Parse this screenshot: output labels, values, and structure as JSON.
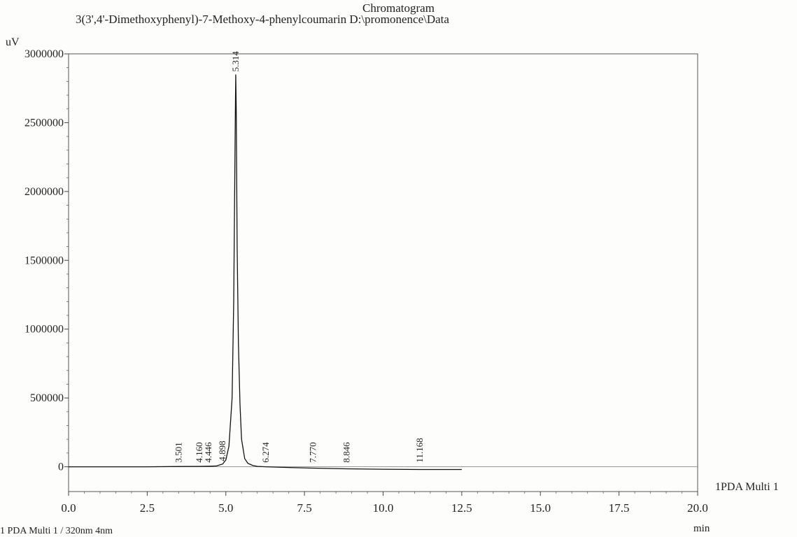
{
  "chart_data": {
    "type": "line",
    "title": "Chromatogram",
    "subtitle": "3(3',4'-Dimethoxyphenyl)-7-Methoxy-4-phenylcoumarin D:\\promonence\\Data",
    "ylabel": "uV",
    "xlabel": "min",
    "xlim": [
      0,
      20
    ],
    "ylim": [
      -180000,
      3000000
    ],
    "x_ticks": [
      "0.0",
      "2.5",
      "5.0",
      "7.5",
      "10.0",
      "12.5",
      "15.0",
      "17.5",
      "20.0"
    ],
    "y_ticks": [
      "0",
      "500000",
      "1000000",
      "1500000",
      "2000000",
      "2500000",
      "3000000"
    ],
    "grid": false,
    "series": [
      {
        "name": "1PDA Multi 1",
        "x": [
          0.0,
          2.5,
          3.5,
          4.16,
          4.45,
          4.7,
          4.9,
          5.0,
          5.1,
          5.2,
          5.25,
          5.3,
          5.314,
          5.33,
          5.36,
          5.4,
          5.45,
          5.5,
          5.6,
          5.7,
          5.85,
          6.0,
          6.274,
          7.0,
          7.77,
          8.85,
          10.0,
          11.17,
          12.0,
          12.5
        ],
        "y": [
          0,
          0,
          2000,
          3000,
          4000,
          6000,
          20000,
          50000,
          150000,
          500000,
          1200000,
          2500000,
          2850000,
          2600000,
          1600000,
          900000,
          450000,
          200000,
          60000,
          25000,
          10000,
          3000,
          0,
          -5000,
          -10000,
          -15000,
          -18000,
          -20000,
          -20000,
          -20000
        ]
      }
    ],
    "peaks": [
      {
        "label": "3.501",
        "x": 3.501,
        "y": 2000
      },
      {
        "label": "4.160",
        "x": 4.16,
        "y": 3000
      },
      {
        "label": "4.446",
        "x": 4.446,
        "y": 4000
      },
      {
        "label": "4.898",
        "x": 4.898,
        "y": 20000
      },
      {
        "label": "5.314",
        "x": 5.314,
        "y": 2850000
      },
      {
        "label": "6.274",
        "x": 6.274,
        "y": 0
      },
      {
        "label": "7.770",
        "x": 7.77,
        "y": -10000
      },
      {
        "label": "8.846",
        "x": 8.846,
        "y": -15000
      },
      {
        "label": "11.168",
        "x": 11.168,
        "y": -20000
      }
    ],
    "legend_right": "1PDA Multi 1",
    "footer_legend": "1   PDA Multi 1 / 320nm 4nm"
  }
}
